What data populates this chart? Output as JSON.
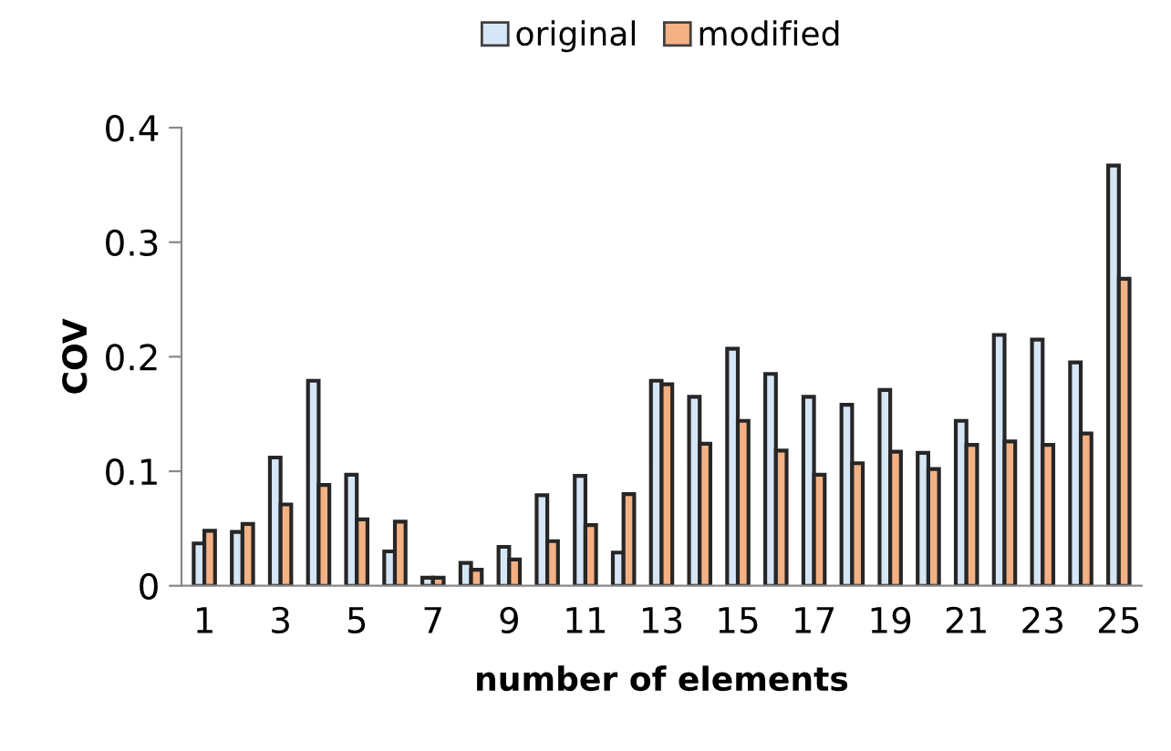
{
  "chart_data": {
    "type": "bar",
    "categories": [
      "1",
      null,
      "3",
      null,
      "5",
      null,
      "7",
      null,
      "9",
      null,
      "11",
      null,
      "13",
      null,
      "15",
      null,
      "17",
      null,
      "19",
      null,
      "21",
      null,
      "23",
      null,
      "25"
    ],
    "series": [
      {
        "name": "original",
        "color": "#d6e6f7",
        "values": [
          0.037,
          0.047,
          0.112,
          0.179,
          0.097,
          0.03,
          0.007,
          0.02,
          0.034,
          0.079,
          0.096,
          0.029,
          0.179,
          0.165,
          0.207,
          0.185,
          0.165,
          0.158,
          0.171,
          0.116,
          0.144,
          0.219,
          0.215,
          0.195,
          0.367
        ]
      },
      {
        "name": "modified",
        "color": "#f4b183",
        "values": [
          0.048,
          0.054,
          0.071,
          0.088,
          0.058,
          0.056,
          0.007,
          0.014,
          0.023,
          0.039,
          0.053,
          0.08,
          0.176,
          0.124,
          0.144,
          0.118,
          0.097,
          0.107,
          0.117,
          0.102,
          0.123,
          0.126,
          0.123,
          0.133,
          0.268
        ]
      }
    ],
    "xlabel": "number of elements",
    "ylabel": "COV",
    "ylim": [
      0,
      0.4
    ],
    "yticks": [
      {
        "value": 0,
        "label": "0"
      },
      0.1,
      0.2,
      0.3,
      0.4
    ],
    "grid": false,
    "legend": "top"
  }
}
